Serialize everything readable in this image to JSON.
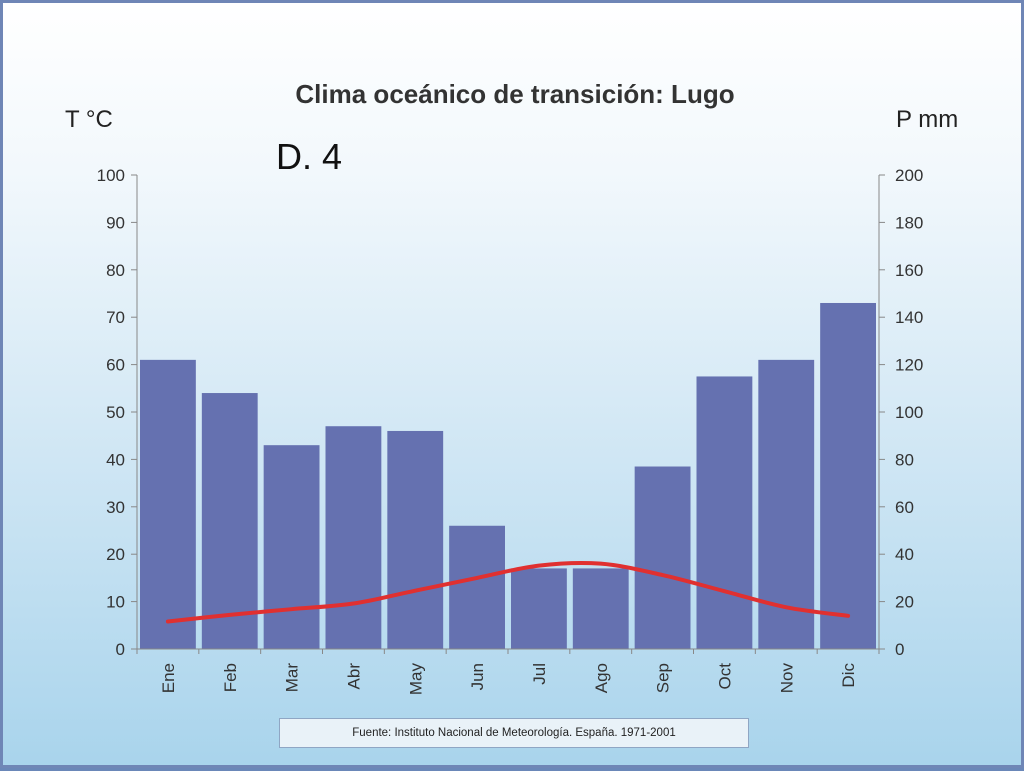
{
  "chart_data": {
    "type": "bar",
    "title": "Clima oceánico de transición: Lugo",
    "annotation": "D. 4",
    "left_axis_label": "T °C",
    "right_axis_label": "P mm",
    "categories": [
      "Ene",
      "Feb",
      "Mar",
      "Abr",
      "May",
      "Jun",
      "Jul",
      "Ago",
      "Sep",
      "Oct",
      "Nov",
      "Dic"
    ],
    "left_ticks": [
      0,
      10,
      20,
      30,
      40,
      50,
      60,
      70,
      80,
      90,
      100
    ],
    "right_ticks": [
      0,
      20,
      40,
      60,
      80,
      100,
      120,
      140,
      160,
      180,
      200
    ],
    "left_ylim": [
      0,
      100
    ],
    "right_ylim": [
      0,
      200
    ],
    "grid": false,
    "series": [
      {
        "kind": "bar",
        "axis": "right",
        "values": [
          122,
          108,
          86,
          94,
          92,
          52,
          34,
          34,
          77,
          115,
          122,
          146
        ],
        "color": "#6571b0"
      },
      {
        "kind": "line",
        "axis": "left",
        "values": [
          5.8,
          7.2,
          8.4,
          9.6,
          12.3,
          15.0,
          17.6,
          18.0,
          15.6,
          12.2,
          8.8,
          7.0
        ],
        "color": "#e03030"
      }
    ],
    "source": "Fuente: Instituto Nacional de Meteorología. España. 1971-2001"
  }
}
